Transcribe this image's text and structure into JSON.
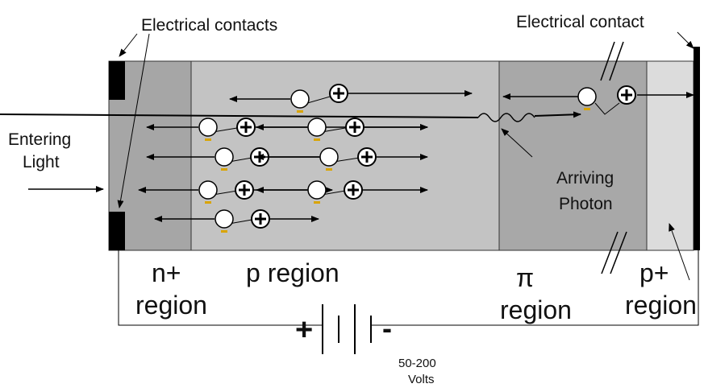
{
  "labels": {
    "electrical_contacts": "Electrical contacts",
    "electrical_contact": "Electrical contact",
    "entering_light_1": "Entering",
    "entering_light_2": "Light",
    "arriving_photon_1": "Arriving",
    "arriving_photon_2": "Photon",
    "n_region_1": "n+",
    "n_region_2": "region",
    "p_region": "p region",
    "pi_region_1": "π",
    "pi_region_2": "region",
    "pplus_region_1": "p+",
    "pplus_region_2": "region",
    "battery_plus": "+",
    "battery_minus": "-",
    "voltage_1": "50-200",
    "voltage_2": "Volts"
  },
  "colors": {
    "n_region": "#a6a6a6",
    "p_region": "#c3c3c3",
    "pi_region": "#a8a8a8",
    "pplus_region": "#dcdcdc",
    "contact": "#000000",
    "hole_marker": "#d9a400"
  }
}
